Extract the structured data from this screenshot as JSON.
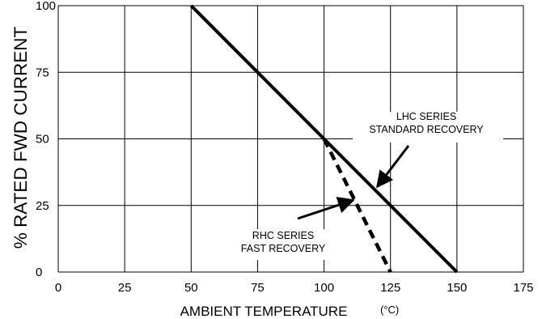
{
  "chart_data": {
    "type": "line",
    "xlabel": "AMBIENT  TEMPERATURE",
    "xunit": "(°C)",
    "ylabel": "% RATED  FWD  CURRENT",
    "xlim": [
      0,
      175
    ],
    "ylim": [
      0,
      100
    ],
    "x_ticks": [
      "0",
      "25",
      "50",
      "75",
      "100",
      "125",
      "150",
      "175"
    ],
    "y_ticks": [
      "0",
      "25",
      "50",
      "75",
      "100"
    ],
    "grid": true,
    "series": [
      {
        "name": "LHC SERIES STANDARD RECOVERY",
        "style": "solid",
        "color": "#000000",
        "x": [
          50,
          150
        ],
        "y": [
          100,
          0
        ]
      },
      {
        "name": "RHC SERIES FAST RECOVERY",
        "style": "dashed",
        "color": "#000000",
        "x": [
          100,
          125
        ],
        "y": [
          50,
          0
        ]
      }
    ],
    "annotations": [
      {
        "lines": [
          "LHC  SERIES",
          "STANDARD RECOVERY"
        ],
        "arrow_to": [
          120,
          32
        ]
      },
      {
        "lines": [
          "RHC  SERIES",
          "FAST RECOVERY"
        ],
        "arrow_to": [
          111,
          27
        ]
      }
    ]
  }
}
